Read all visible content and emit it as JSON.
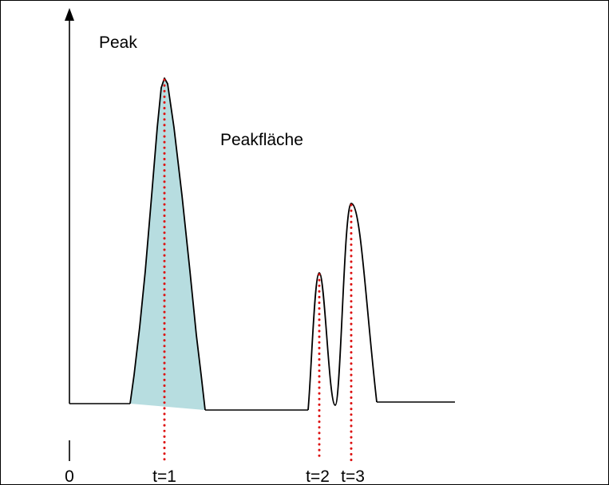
{
  "diagram": {
    "y_axis_label": "Peak",
    "area_label": "Peakfläche",
    "x_marks": [
      {
        "label": "0",
        "time": 0
      },
      {
        "label": "t=1",
        "time": 1
      },
      {
        "label": "t=2",
        "time": 2
      },
      {
        "label": "t=3",
        "time": 3
      }
    ]
  },
  "colors": {
    "line": "#000000",
    "area_fill": "#b7dde0",
    "peak_marker": "#dd1111"
  }
}
